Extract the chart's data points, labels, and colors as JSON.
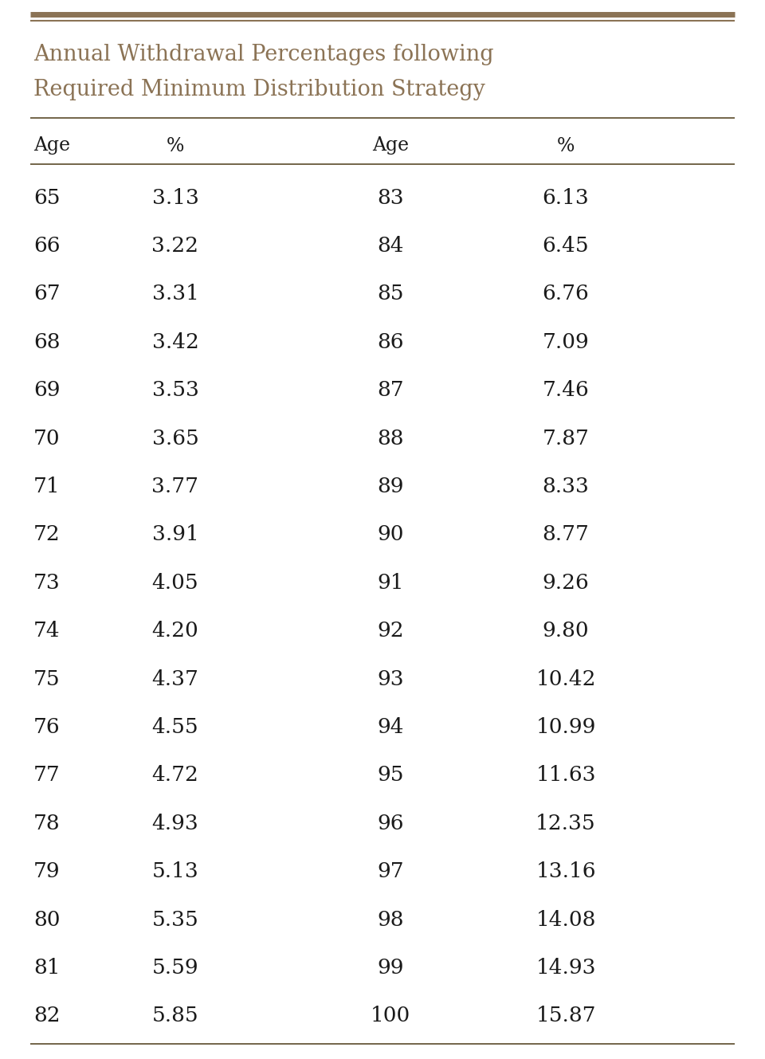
{
  "title_line1": "Annual Withdrawal Percentages following",
  "title_line2": "Required Minimum Distribution Strategy",
  "title_color": "#8B7355",
  "header_color": "#1a1a1a",
  "data_color": "#1a1a1a",
  "background_color": "#FFFFFF",
  "col_headers": [
    "Age",
    "%",
    "Age",
    "%"
  ],
  "left_ages": [
    65,
    66,
    67,
    68,
    69,
    70,
    71,
    72,
    73,
    74,
    75,
    76,
    77,
    78,
    79,
    80,
    81,
    82
  ],
  "left_pcts": [
    "3.13",
    "3.22",
    "3.31",
    "3.42",
    "3.53",
    "3.65",
    "3.77",
    "3.91",
    "4.05",
    "4.20",
    "4.37",
    "4.55",
    "4.72",
    "4.93",
    "5.13",
    "5.35",
    "5.59",
    "5.85"
  ],
  "right_ages": [
    83,
    84,
    85,
    86,
    87,
    88,
    89,
    90,
    91,
    92,
    93,
    94,
    95,
    96,
    97,
    98,
    99,
    100
  ],
  "right_pcts": [
    "6.13",
    "6.45",
    "6.76",
    "7.09",
    "7.46",
    "7.87",
    "8.33",
    "8.77",
    "9.26",
    "9.80",
    "10.42",
    "10.99",
    "11.63",
    "12.35",
    "13.16",
    "14.08",
    "14.93",
    "15.87"
  ],
  "top_bar_color": "#8B7355",
  "rule_color": "#5a4a2a",
  "title_fontsize": 19.5,
  "header_fontsize": 17,
  "data_fontsize": 19
}
